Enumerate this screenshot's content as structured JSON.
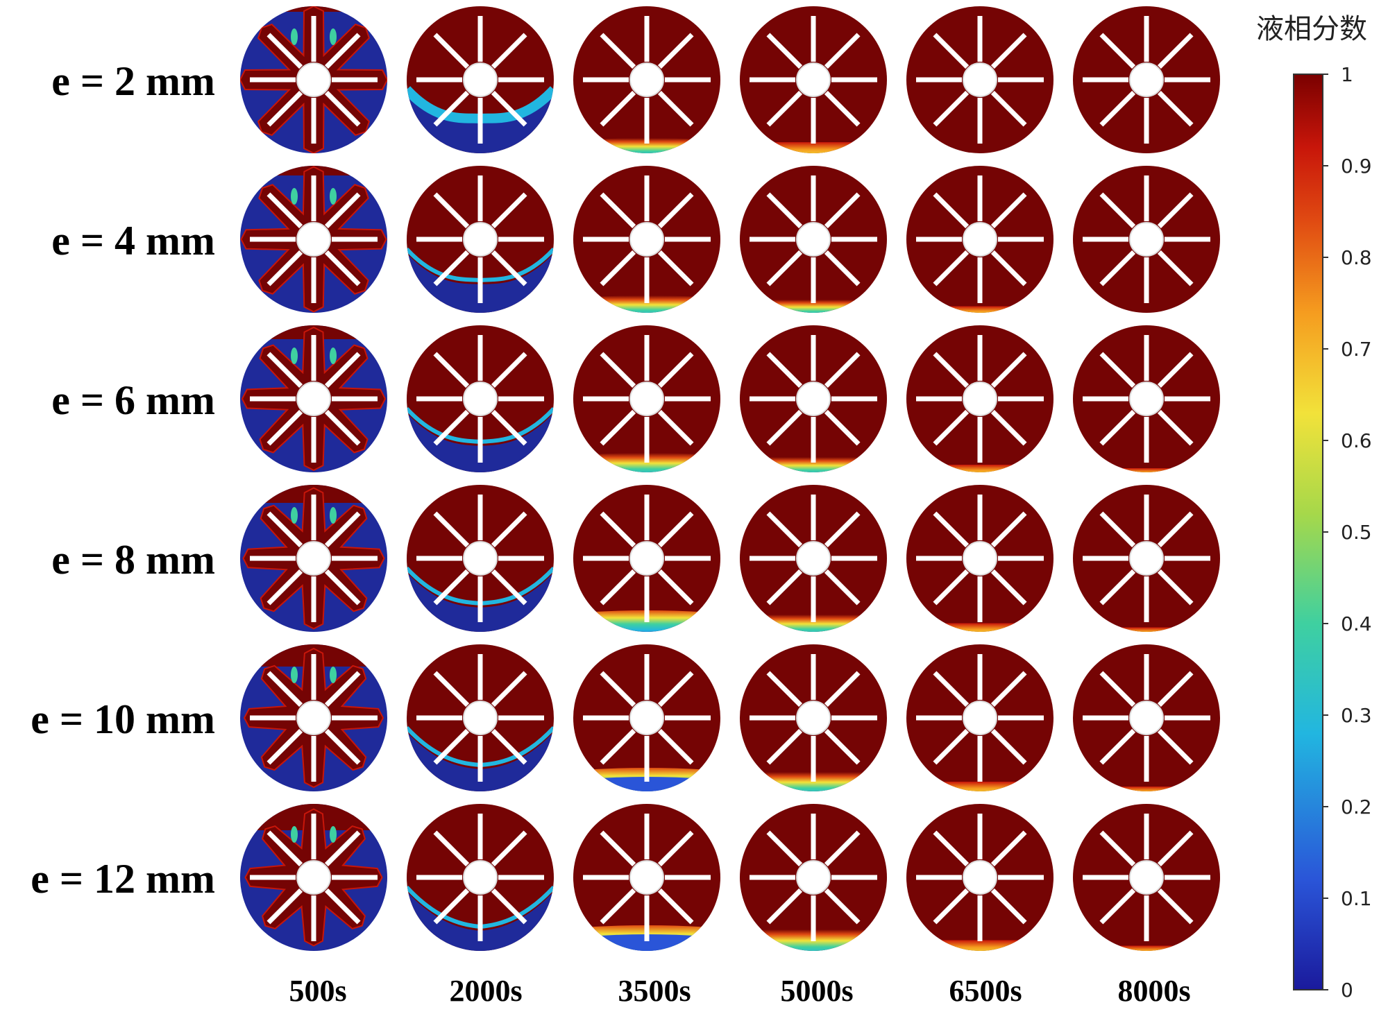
{
  "figure": {
    "row_labels": [
      "e = 2 mm",
      "e = 4 mm",
      "e = 6 mm",
      "e = 8 mm",
      "e = 10 mm",
      "e = 12 mm"
    ],
    "column_labels": [
      "500s",
      "2000s",
      "3500s",
      "5000s",
      "6500s",
      "8000s"
    ],
    "colorbar": {
      "title": "液相分数",
      "ticks": [
        "1",
        "0.9",
        "0.8",
        "0.7",
        "0.6",
        "0.5",
        "0.4",
        "0.3",
        "0.2",
        "0.1",
        "0"
      ],
      "colors": [
        "#1a1a9c",
        "#2a55d8",
        "#22b6e0",
        "#3fd0a0",
        "#a6d84a",
        "#f2e23a",
        "#f59c1f",
        "#e04a12",
        "#c8160a",
        "#7a0000"
      ]
    },
    "colors": {
      "liquid": "#750404",
      "solid": "#1f2a9a",
      "fin": "#ffffff"
    }
  }
}
